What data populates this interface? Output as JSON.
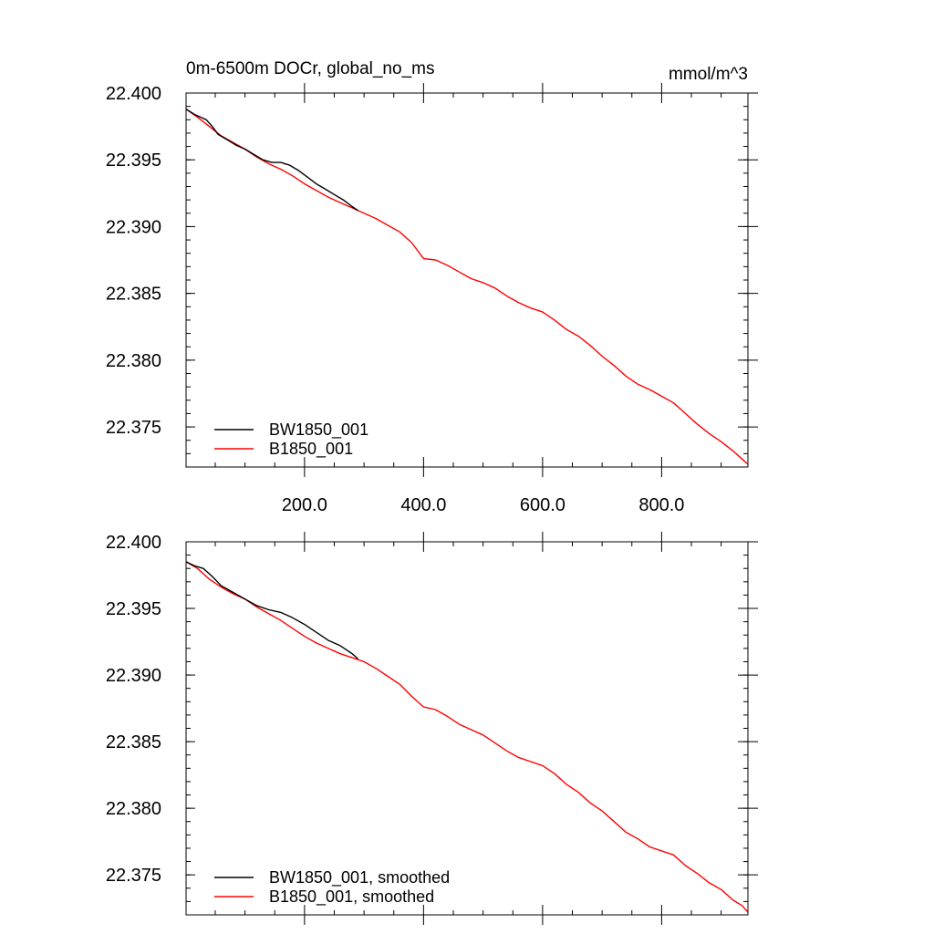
{
  "chart_data": [
    {
      "type": "line",
      "title": "0m-6500m DOCr, global_no_ms",
      "units": "mmol/m^3",
      "xlabel": "",
      "ylabel": "",
      "xlim": [
        1,
        945
      ],
      "ylim": [
        22.372,
        22.4
      ],
      "xticks": [
        200,
        400,
        600,
        800
      ],
      "xtick_labels": [
        "200.0",
        "400.0",
        "600.0",
        "800.0"
      ],
      "yticks": [
        22.4,
        22.395,
        22.39,
        22.385,
        22.38,
        22.375
      ],
      "ytick_labels": [
        "22.400",
        "22.395",
        "22.390",
        "22.385",
        "22.380",
        "22.375"
      ],
      "legend": "bottom-left",
      "series": [
        {
          "name": "BW1850_001",
          "color": "#000000",
          "points": [
            [
              1,
              22.3988
            ],
            [
              15,
              22.3984
            ],
            [
              25,
              22.3982
            ],
            [
              35,
              22.398
            ],
            [
              45,
              22.3975
            ],
            [
              55,
              22.3969
            ],
            [
              70,
              22.3965
            ],
            [
              85,
              22.3961
            ],
            [
              100,
              22.3958
            ],
            [
              115,
              22.3954
            ],
            [
              130,
              22.395
            ],
            [
              145,
              22.3948
            ],
            [
              160,
              22.3948
            ],
            [
              175,
              22.3946
            ],
            [
              190,
              22.3942
            ],
            [
              205,
              22.3937
            ],
            [
              220,
              22.3932
            ],
            [
              235,
              22.3928
            ],
            [
              250,
              22.3924
            ],
            [
              265,
              22.392
            ],
            [
              280,
              22.3915
            ],
            [
              290,
              22.3912
            ]
          ]
        },
        {
          "name": "B1850_001",
          "color": "#ff0000",
          "points": [
            [
              1,
              22.3988
            ],
            [
              20,
              22.3982
            ],
            [
              40,
              22.3975
            ],
            [
              60,
              22.3968
            ],
            [
              80,
              22.3963
            ],
            [
              100,
              22.3958
            ],
            [
              120,
              22.3952
            ],
            [
              140,
              22.3947
            ],
            [
              160,
              22.3943
            ],
            [
              180,
              22.3938
            ],
            [
              200,
              22.3932
            ],
            [
              220,
              22.3927
            ],
            [
              240,
              22.3922
            ],
            [
              260,
              22.3918
            ],
            [
              280,
              22.3914
            ],
            [
              300,
              22.391
            ],
            [
              320,
              22.3906
            ],
            [
              340,
              22.3901
            ],
            [
              360,
              22.3896
            ],
            [
              380,
              22.3888
            ],
            [
              400,
              22.3876
            ],
            [
              420,
              22.3875
            ],
            [
              440,
              22.3871
            ],
            [
              460,
              22.3866
            ],
            [
              480,
              22.3861
            ],
            [
              500,
              22.3858
            ],
            [
              520,
              22.3854
            ],
            [
              540,
              22.3848
            ],
            [
              560,
              22.3843
            ],
            [
              580,
              22.3839
            ],
            [
              600,
              22.3836
            ],
            [
              620,
              22.383
            ],
            [
              640,
              22.3823
            ],
            [
              660,
              22.3818
            ],
            [
              680,
              22.3811
            ],
            [
              700,
              22.3803
            ],
            [
              720,
              22.3796
            ],
            [
              740,
              22.3788
            ],
            [
              760,
              22.3782
            ],
            [
              780,
              22.3778
            ],
            [
              800,
              22.3773
            ],
            [
              820,
              22.3768
            ],
            [
              840,
              22.376
            ],
            [
              860,
              22.3752
            ],
            [
              880,
              22.3745
            ],
            [
              900,
              22.3739
            ],
            [
              920,
              22.3732
            ],
            [
              935,
              22.3726
            ],
            [
              945,
              22.3722
            ]
          ]
        }
      ]
    },
    {
      "type": "line",
      "title": "",
      "xlabel": "",
      "ylabel": "",
      "xlim": [
        1,
        945
      ],
      "ylim": [
        22.372,
        22.4
      ],
      "xticks": [
        200,
        400,
        600,
        800
      ],
      "yticks": [
        22.4,
        22.395,
        22.39,
        22.385,
        22.38,
        22.375
      ],
      "ytick_labels": [
        "22.400",
        "22.395",
        "22.390",
        "22.385",
        "22.380",
        "22.375"
      ],
      "legend": "bottom-left",
      "series": [
        {
          "name": "BW1850_001, smoothed",
          "color": "#000000",
          "points": [
            [
              1,
              22.3985
            ],
            [
              15,
              22.3982
            ],
            [
              30,
              22.398
            ],
            [
              45,
              22.3974
            ],
            [
              60,
              22.3967
            ],
            [
              80,
              22.3962
            ],
            [
              100,
              22.3957
            ],
            [
              120,
              22.3952
            ],
            [
              140,
              22.3949
            ],
            [
              160,
              22.3947
            ],
            [
              180,
              22.3943
            ],
            [
              200,
              22.3938
            ],
            [
              220,
              22.3932
            ],
            [
              240,
              22.3926
            ],
            [
              260,
              22.3922
            ],
            [
              280,
              22.3916
            ],
            [
              290,
              22.3912
            ]
          ]
        },
        {
          "name": "B1850_001, smoothed",
          "color": "#ff0000",
          "points": [
            [
              1,
              22.3985
            ],
            [
              20,
              22.398
            ],
            [
              40,
              22.3972
            ],
            [
              60,
              22.3966
            ],
            [
              80,
              22.3961
            ],
            [
              100,
              22.3957
            ],
            [
              120,
              22.3951
            ],
            [
              140,
              22.3946
            ],
            [
              160,
              22.3941
            ],
            [
              180,
              22.3935
            ],
            [
              200,
              22.3929
            ],
            [
              220,
              22.3924
            ],
            [
              240,
              22.392
            ],
            [
              260,
              22.3916
            ],
            [
              280,
              22.3913
            ],
            [
              300,
              22.391
            ],
            [
              320,
              22.3905
            ],
            [
              340,
              22.3899
            ],
            [
              360,
              22.3893
            ],
            [
              380,
              22.3884
            ],
            [
              400,
              22.3876
            ],
            [
              420,
              22.3874
            ],
            [
              440,
              22.3869
            ],
            [
              460,
              22.3863
            ],
            [
              480,
              22.3859
            ],
            [
              500,
              22.3855
            ],
            [
              520,
              22.3849
            ],
            [
              540,
              22.3843
            ],
            [
              560,
              22.3838
            ],
            [
              580,
              22.3835
            ],
            [
              600,
              22.3832
            ],
            [
              620,
              22.3826
            ],
            [
              640,
              22.3818
            ],
            [
              660,
              22.3812
            ],
            [
              680,
              22.3804
            ],
            [
              700,
              22.3798
            ],
            [
              720,
              22.379
            ],
            [
              740,
              22.3782
            ],
            [
              760,
              22.3777
            ],
            [
              780,
              22.3771
            ],
            [
              800,
              22.3768
            ],
            [
              820,
              22.3765
            ],
            [
              840,
              22.3757
            ],
            [
              860,
              22.3751
            ],
            [
              880,
              22.3744
            ],
            [
              900,
              22.3739
            ],
            [
              920,
              22.3731
            ],
            [
              935,
              22.3727
            ],
            [
              945,
              22.3722
            ]
          ]
        }
      ]
    }
  ]
}
